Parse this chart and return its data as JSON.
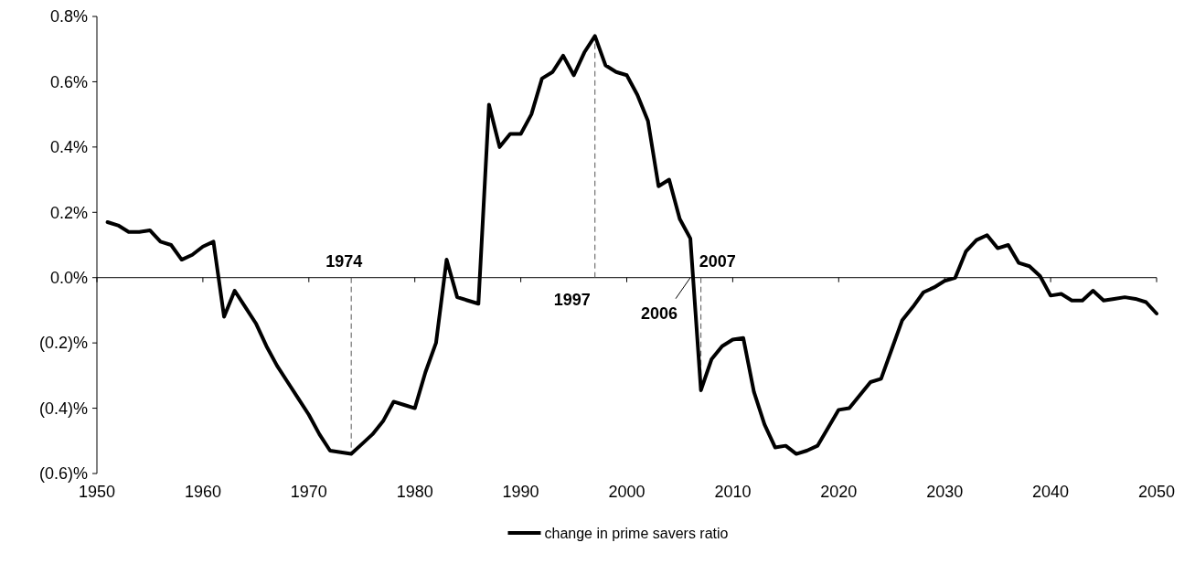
{
  "chart_data": {
    "type": "line",
    "x": [
      1951,
      1952,
      1953,
      1954,
      1955,
      1956,
      1957,
      1958,
      1959,
      1960,
      1961,
      1962,
      1963,
      1964,
      1965,
      1966,
      1967,
      1968,
      1969,
      1970,
      1971,
      1972,
      1973,
      1974,
      1975,
      1976,
      1977,
      1978,
      1979,
      1980,
      1981,
      1982,
      1983,
      1984,
      1985,
      1986,
      1987,
      1988,
      1989,
      1990,
      1991,
      1992,
      1993,
      1994,
      1995,
      1996,
      1997,
      1998,
      1999,
      2000,
      2001,
      2002,
      2003,
      2004,
      2005,
      2006,
      2007,
      2008,
      2009,
      2010,
      2011,
      2012,
      2013,
      2014,
      2015,
      2016,
      2017,
      2018,
      2019,
      2020,
      2021,
      2022,
      2023,
      2024,
      2025,
      2026,
      2027,
      2028,
      2029,
      2030,
      2031,
      2032,
      2033,
      2034,
      2035,
      2036,
      2037,
      2038,
      2039,
      2040,
      2041,
      2042,
      2043,
      2044,
      2045,
      2046,
      2047,
      2048,
      2049,
      2050
    ],
    "series": [
      {
        "name": "change in prime savers ratio",
        "color": "#000000",
        "values": [
          0.17,
          0.16,
          0.14,
          0.14,
          0.145,
          0.11,
          0.1,
          0.055,
          0.07,
          0.095,
          0.11,
          -0.12,
          -0.04,
          -0.09,
          -0.14,
          -0.21,
          -0.27,
          -0.32,
          -0.37,
          -0.42,
          -0.48,
          -0.53,
          -0.535,
          -0.54,
          -0.51,
          -0.48,
          -0.44,
          -0.38,
          -0.39,
          -0.4,
          -0.29,
          -0.2,
          0.055,
          -0.06,
          -0.07,
          -0.08,
          0.53,
          0.4,
          0.44,
          0.44,
          0.5,
          0.61,
          0.63,
          0.68,
          0.62,
          0.69,
          0.74,
          0.65,
          0.63,
          0.62,
          0.56,
          0.48,
          0.28,
          0.3,
          0.18,
          0.12,
          -0.345,
          -0.25,
          -0.21,
          -0.19,
          -0.185,
          -0.35,
          -0.45,
          -0.52,
          -0.515,
          -0.54,
          -0.53,
          -0.515,
          -0.46,
          -0.405,
          -0.4,
          -0.36,
          -0.32,
          -0.31,
          -0.22,
          -0.13,
          -0.09,
          -0.045,
          -0.03,
          -0.01,
          0.0,
          0.08,
          0.115,
          0.13,
          0.09,
          0.1,
          0.045,
          0.035,
          0.005,
          -0.055,
          -0.05,
          -0.07,
          -0.07,
          -0.04,
          -0.07,
          -0.065,
          -0.06,
          -0.065,
          -0.075,
          -0.11
        ]
      }
    ],
    "xlim": [
      1950,
      2050
    ],
    "xticks": [
      1950,
      1960,
      1970,
      1980,
      1990,
      2000,
      2010,
      2020,
      2030,
      2040,
      2050
    ],
    "ylim": [
      -0.6,
      0.8
    ],
    "yticks": [
      {
        "value": -0.6,
        "label": "(0.6)%"
      },
      {
        "value": -0.4,
        "label": "(0.4)%"
      },
      {
        "value": -0.2,
        "label": "(0.2)%"
      },
      {
        "value": 0,
        "label": "0.0%"
      },
      {
        "value": 0.2,
        "label": "0.2%"
      },
      {
        "value": 0.4,
        "label": "0.4%"
      },
      {
        "value": 0.6,
        "label": "0.6%"
      },
      {
        "value": 0.8,
        "label": "0.8%"
      }
    ],
    "annotations": [
      {
        "text": "1974",
        "x": 1974,
        "y": -0.54
      },
      {
        "text": "1997",
        "x": 1997,
        "y": 0.74
      },
      {
        "text": "2006",
        "x": 2006,
        "y": 0
      },
      {
        "text": "2007",
        "x": 2007,
        "y": -0.345
      }
    ],
    "legend": "bottom",
    "marker": "none",
    "line_style": "solid"
  }
}
